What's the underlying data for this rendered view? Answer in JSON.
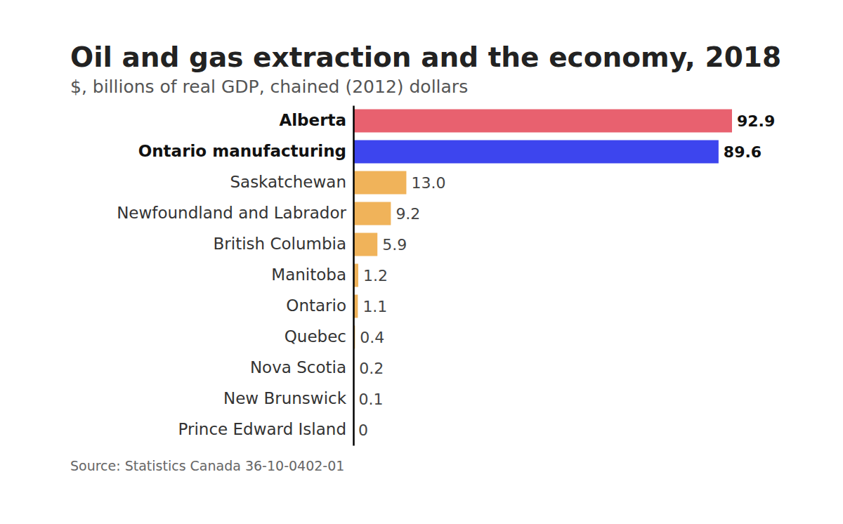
{
  "chart_data": {
    "type": "bar",
    "orientation": "horizontal",
    "title": "Oil and gas extraction and the economy, 2018",
    "subtitle": "$, billions of real GDP, chained (2012) dollars",
    "source": "Source: Statistics Canada 36-10-0402-01",
    "categories": [
      "Alberta",
      "Ontario manufacturing",
      "Saskatchewan",
      "Newfoundland and Labrador",
      "British Columbia",
      "Manitoba",
      "Ontario",
      "Quebec",
      "Nova Scotia",
      "New Brunswick",
      "Prince Edward Island"
    ],
    "values": [
      92.9,
      89.6,
      13.0,
      9.2,
      5.9,
      1.2,
      1.1,
      0.4,
      0.2,
      0.1,
      0
    ],
    "value_labels": [
      "92.9",
      "89.6",
      "13.0",
      "9.2",
      "5.9",
      "1.2",
      "1.1",
      "0.4",
      "0.2",
      "0.1",
      "0"
    ],
    "colors": [
      "#e8616f",
      "#3d45ee",
      "#f0b35a",
      "#f0b35a",
      "#f0b35a",
      "#f0b35a",
      "#f0b35a",
      "#f0b35a",
      "#f0b35a",
      "#f0b35a",
      "#f0b35a"
    ],
    "data_labels": true,
    "tick_labels": "y",
    "grid": false
  }
}
